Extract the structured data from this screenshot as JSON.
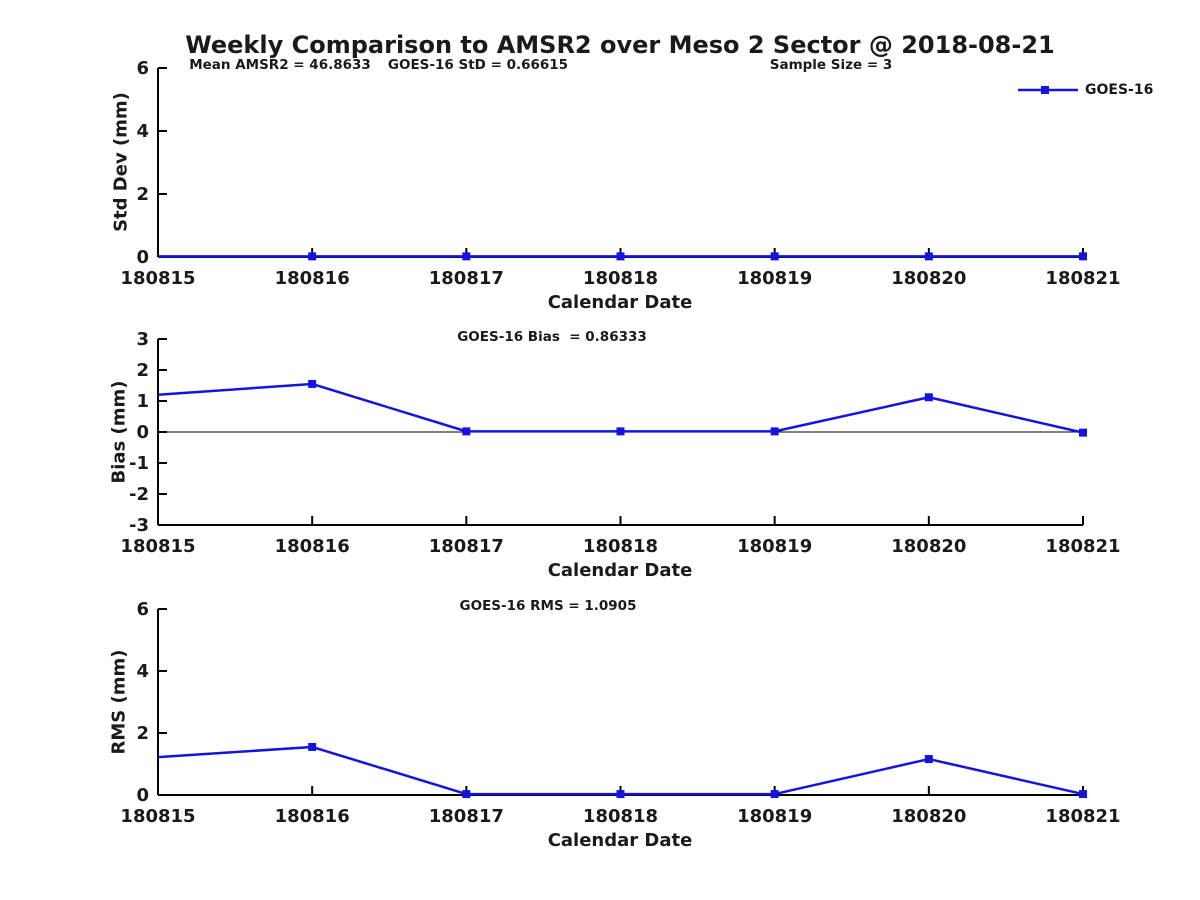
{
  "title": "Weekly Comparison to AMSR2 over Meso 2 Sector @ 2018-08-21",
  "header_stats": {
    "mean_amsr2": "Mean AMSR2 = 46.8633",
    "goes16_std": "GOES-16 StD = 0.66615",
    "sample_size": "Sample Size = 3"
  },
  "legend": {
    "label": "GOES-16",
    "position": "top-right-outside"
  },
  "colors": {
    "line": "#1414E0",
    "axis": "#000000",
    "text": "#1a1a1a",
    "background": "#ffffff"
  },
  "chart_data": [
    {
      "type": "line",
      "x": [
        "180815",
        "180816",
        "180817",
        "180818",
        "180819",
        "180820",
        "180821"
      ],
      "series": [
        {
          "name": "GOES-16",
          "values": [
            0.02,
            0.02,
            0.02,
            0.02,
            0.02,
            0.02,
            0.02
          ]
        }
      ],
      "xlabel": "Calendar Date",
      "ylabel": "Std Dev (mm)",
      "ylim": [
        0,
        6
      ],
      "yticks": [
        0,
        2,
        4,
        6
      ],
      "grid": false,
      "zero_line": false,
      "marker": "square",
      "first_point_marker": false
    },
    {
      "type": "line",
      "annotation": "GOES-16 Bias  = 0.86333",
      "x": [
        "180815",
        "180816",
        "180817",
        "180818",
        "180819",
        "180820",
        "180821"
      ],
      "series": [
        {
          "name": "GOES-16",
          "values": [
            1.2,
            1.55,
            0.02,
            0.02,
            0.02,
            1.12,
            -0.02
          ]
        }
      ],
      "xlabel": "Calendar Date",
      "ylabel": "Bias (mm)",
      "ylim": [
        -3,
        3
      ],
      "yticks": [
        -3,
        -2,
        -1,
        0,
        1,
        2,
        3
      ],
      "grid": false,
      "zero_line": true,
      "marker": "square",
      "first_point_marker": false
    },
    {
      "type": "line",
      "annotation": "GOES-16 RMS = 1.0905",
      "x": [
        "180815",
        "180816",
        "180817",
        "180818",
        "180819",
        "180820",
        "180821"
      ],
      "series": [
        {
          "name": "GOES-16",
          "values": [
            1.22,
            1.55,
            0.03,
            0.03,
            0.03,
            1.16,
            0.03
          ]
        }
      ],
      "xlabel": "Calendar Date",
      "ylabel": "RMS (mm)",
      "ylim": [
        0,
        6
      ],
      "yticks": [
        0,
        2,
        4,
        6
      ],
      "grid": false,
      "zero_line": false,
      "marker": "square",
      "first_point_marker": false
    }
  ]
}
